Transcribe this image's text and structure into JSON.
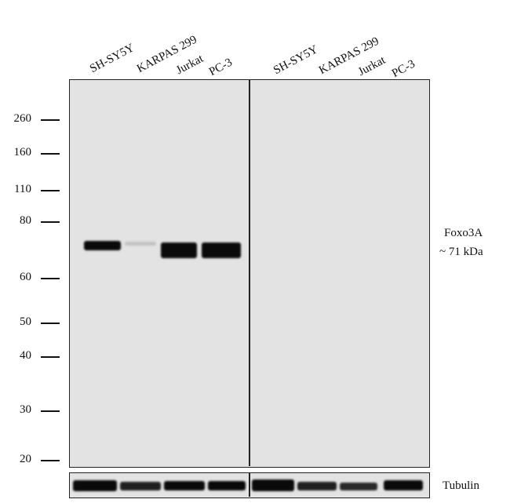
{
  "lanes_left": [
    "SH-SY5Y",
    "KARPAS 299",
    "Jurkat",
    "PC-3"
  ],
  "lanes_right": [
    "SH-SY5Y",
    "KARPAS 299",
    "Jurkat",
    "PC-3"
  ],
  "markers": [
    "260",
    "160",
    "110",
    "80",
    "60",
    "50",
    "40",
    "30",
    "20"
  ],
  "target": {
    "name": "Foxo3A",
    "size": "~ 71  kDa"
  },
  "loading_control": "Tubulin",
  "band_intensity_main_left": [
    0.85,
    0.15,
    1.0,
    1.0
  ],
  "band_intensity_main_right": [
    0,
    0,
    0,
    0
  ],
  "band_intensity_tubulin": [
    1.0,
    0.85,
    0.9,
    0.85,
    1.0,
    0.85,
    0.8,
    0.9
  ],
  "colors": {
    "membrane": "#e3e3e3",
    "band": "#0a0a0a"
  }
}
